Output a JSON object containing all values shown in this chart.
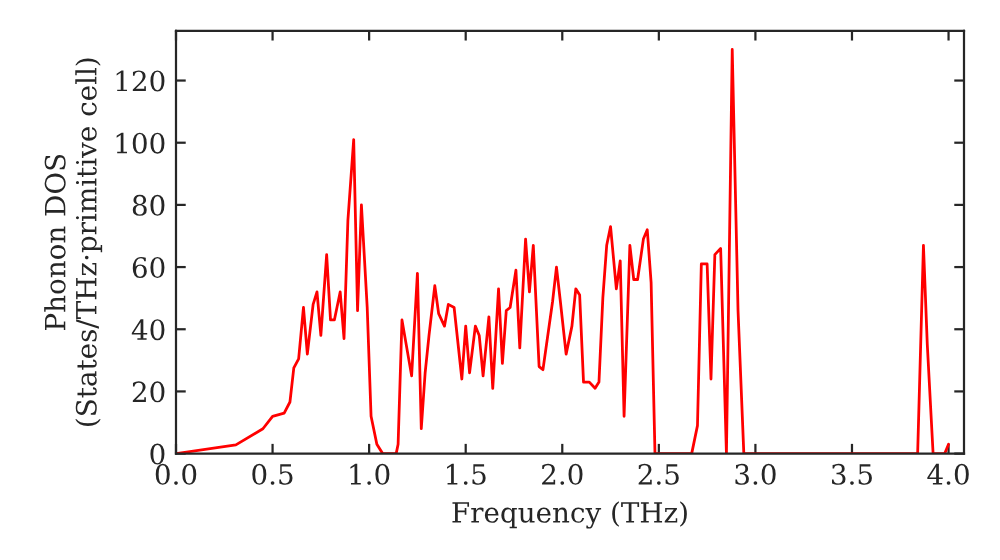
{
  "chart_data": {
    "type": "line",
    "xlabel": "Frequency (THz)",
    "ylabel": "Phonon DOS\n(States/THz·primitive cell)",
    "xlim": [
      0,
      4.08
    ],
    "ylim": [
      0,
      136
    ],
    "xticks": [
      {
        "value": 0,
        "label": "0.0"
      },
      {
        "value": 0.5,
        "label": "0.5"
      },
      {
        "value": 1,
        "label": "1.0"
      },
      {
        "value": 1.5,
        "label": "1.5"
      },
      {
        "value": 2,
        "label": "2.0"
      },
      {
        "value": 2.5,
        "label": "2.5"
      },
      {
        "value": 3,
        "label": "3.0"
      },
      {
        "value": 3.5,
        "label": "3.5"
      },
      {
        "value": 4,
        "label": "4.0"
      }
    ],
    "yticks": [
      0,
      20,
      40,
      60,
      80,
      100,
      120
    ],
    "grid": false,
    "legend": false,
    "marker": "none",
    "line_style": "solid",
    "series": [
      {
        "color": "#ff0000",
        "x": [
          0.0,
          0.31,
          0.45,
          0.5,
          0.56,
          0.59,
          0.61,
          0.635,
          0.66,
          0.68,
          0.71,
          0.73,
          0.75,
          0.78,
          0.8,
          0.82,
          0.85,
          0.87,
          0.89,
          0.92,
          0.94,
          0.96,
          0.99,
          1.01,
          1.04,
          1.07,
          1.14,
          1.15,
          1.17,
          1.22,
          1.25,
          1.27,
          1.29,
          1.31,
          1.34,
          1.36,
          1.39,
          1.41,
          1.44,
          1.48,
          1.5,
          1.52,
          1.55,
          1.57,
          1.59,
          1.62,
          1.64,
          1.67,
          1.69,
          1.71,
          1.73,
          1.76,
          1.78,
          1.81,
          1.83,
          1.85,
          1.88,
          1.9,
          1.95,
          1.97,
          1.99,
          2.02,
          2.05,
          2.07,
          2.09,
          2.11,
          2.14,
          2.17,
          2.19,
          2.21,
          2.23,
          2.25,
          2.28,
          2.3,
          2.32,
          2.35,
          2.37,
          2.39,
          2.42,
          2.44,
          2.46,
          2.48,
          2.67,
          2.7,
          2.72,
          2.75,
          2.77,
          2.79,
          2.82,
          2.85,
          2.88,
          2.91,
          2.94,
          3.84,
          3.87,
          3.89,
          3.92,
          3.98,
          4.0
        ],
        "values": [
          0,
          2.8,
          8,
          12,
          13,
          16.6,
          27.6,
          30.5,
          47,
          32,
          48,
          52,
          38,
          64,
          43,
          43,
          52,
          37,
          75,
          101,
          46,
          80,
          47,
          12,
          3,
          0,
          0,
          3,
          43,
          25,
          58,
          8,
          26,
          38,
          54,
          45,
          41,
          48,
          47,
          24,
          41,
          26,
          41,
          38,
          25,
          44,
          21,
          53,
          29,
          46,
          47,
          59,
          34,
          69,
          52,
          67,
          28,
          27,
          49,
          60,
          49,
          32,
          41,
          53,
          51,
          23,
          23,
          21,
          23,
          50,
          67,
          73,
          53,
          62,
          12,
          67,
          56,
          56,
          69,
          72,
          55,
          0,
          0,
          9,
          61,
          61,
          24,
          64,
          66,
          0,
          130,
          46,
          0,
          0,
          67,
          35,
          0,
          0,
          3
        ]
      }
    ]
  }
}
